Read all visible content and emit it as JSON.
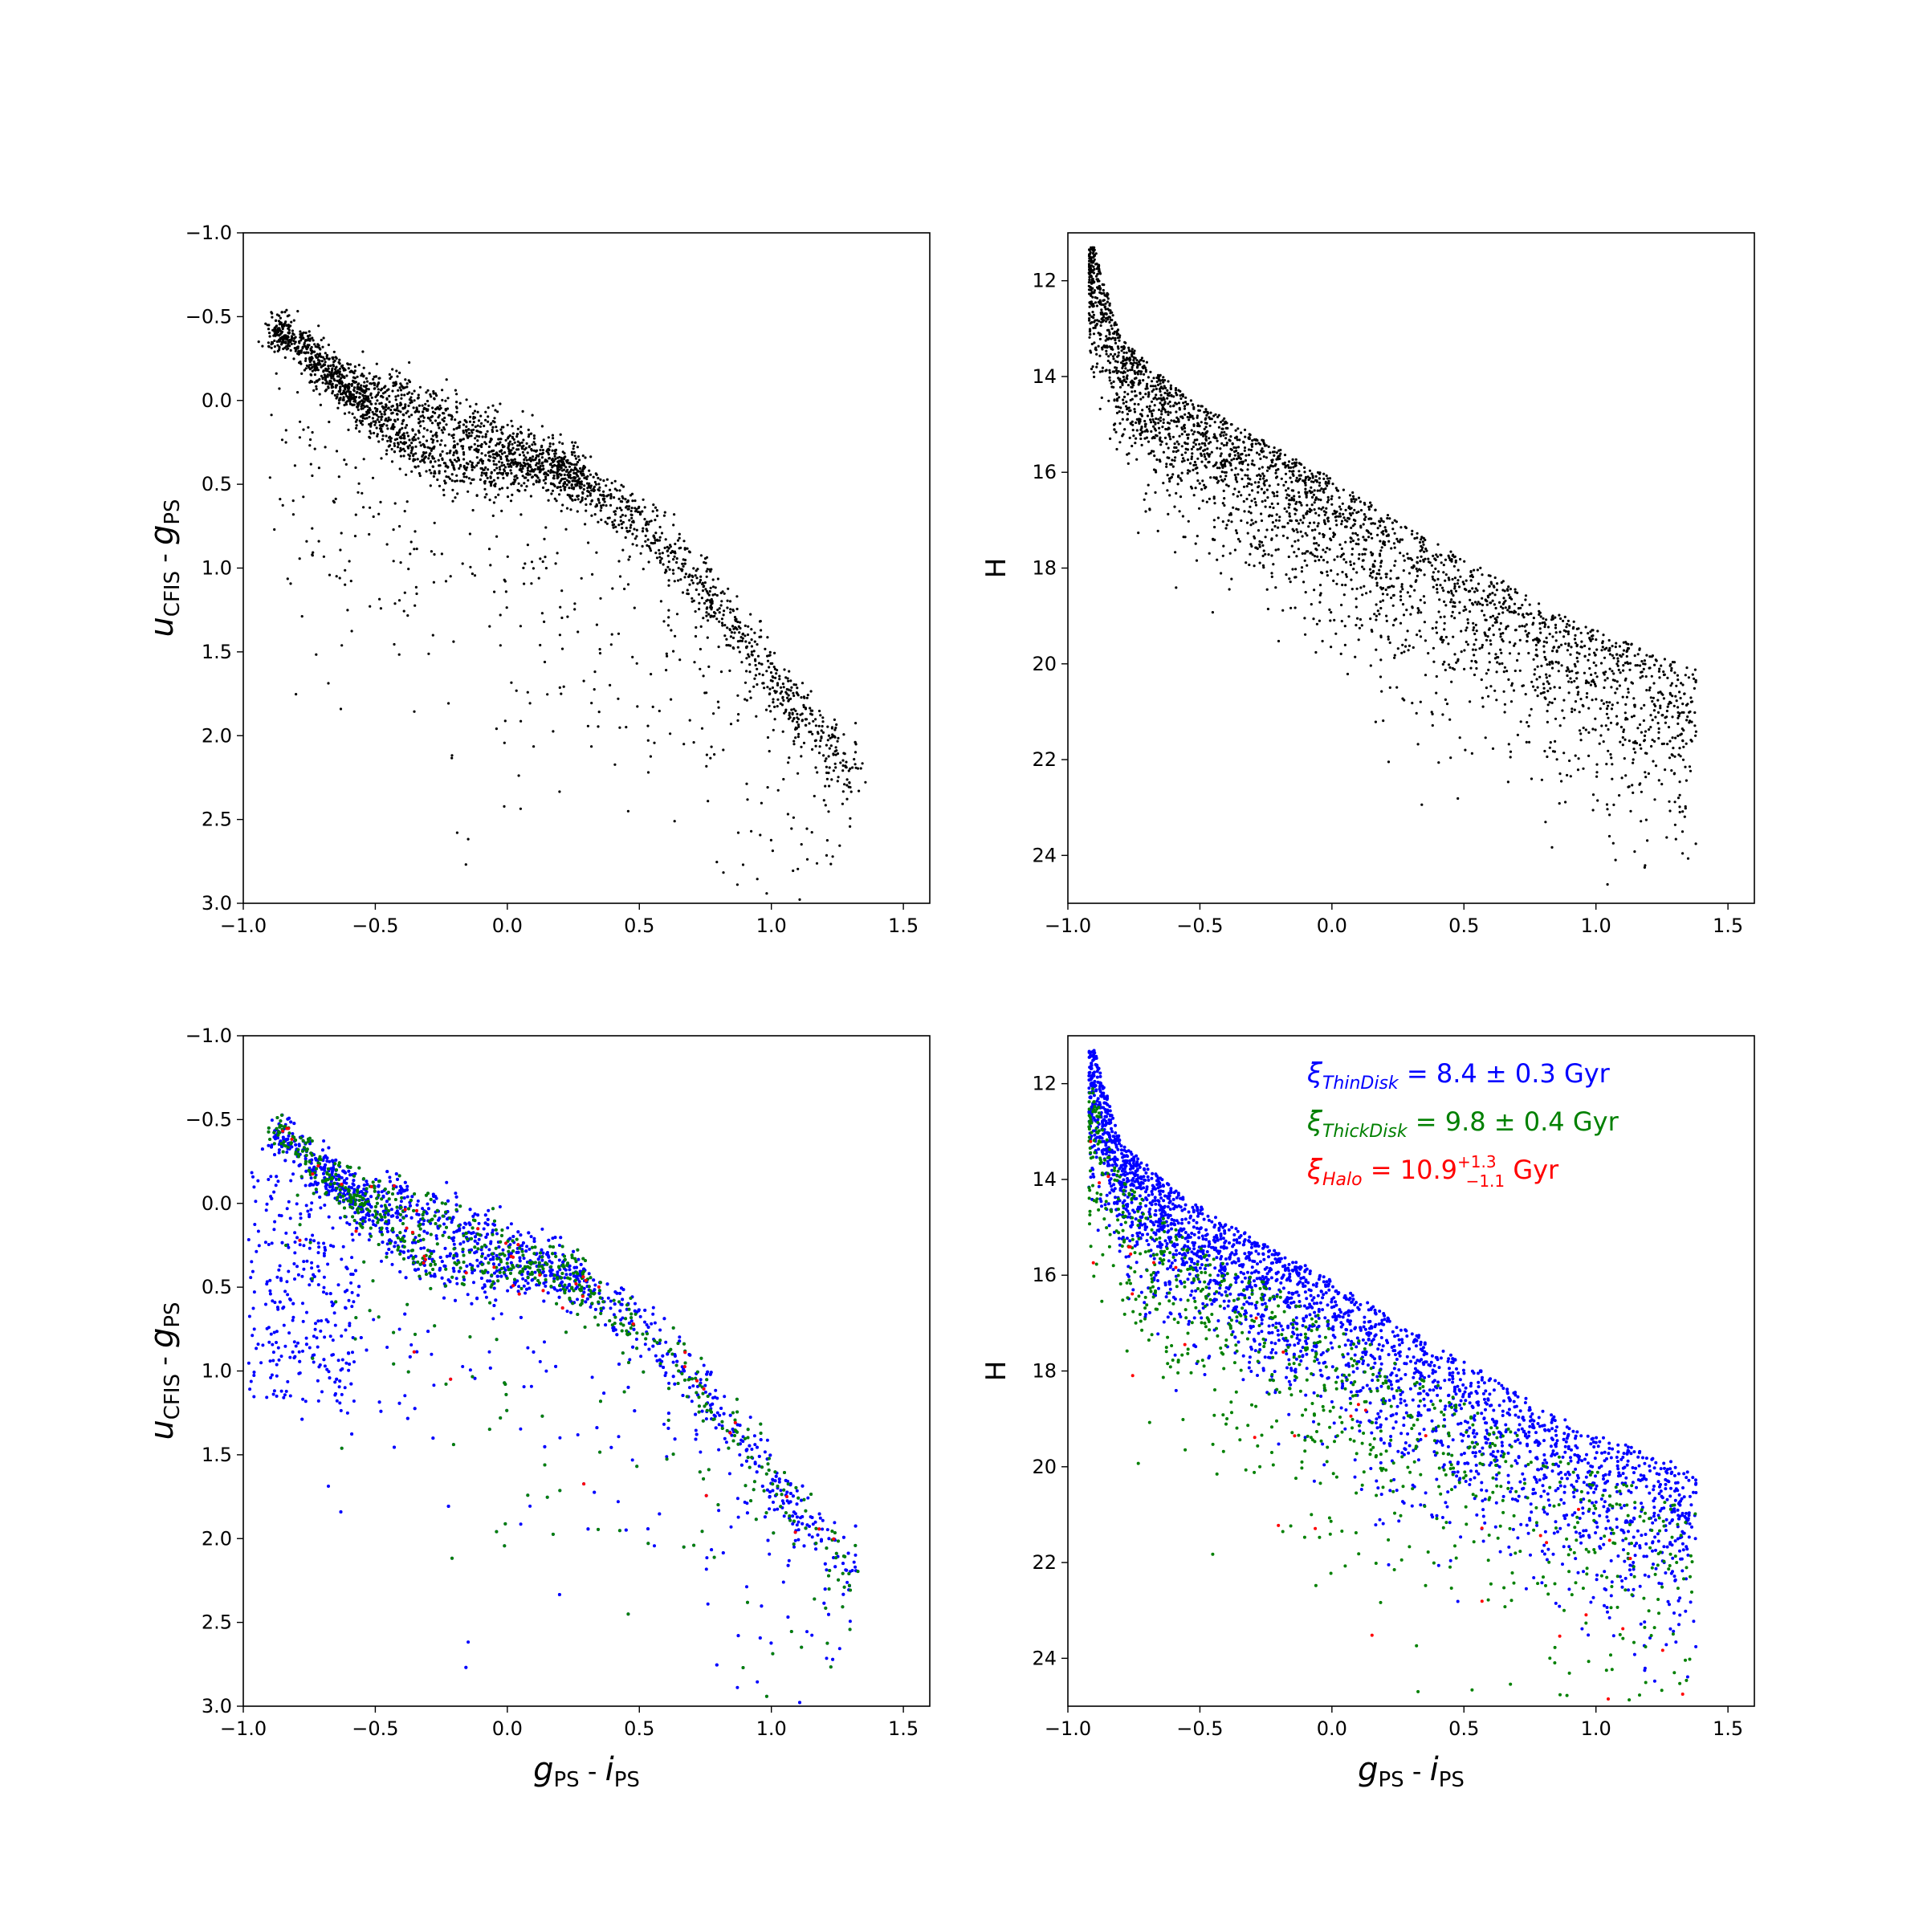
{
  "chart_data": [
    {
      "type": "scatter",
      "panel": "top-left",
      "xlim": [
        -1.0,
        1.6
      ],
      "ylim": [
        3.0,
        -1.0
      ],
      "y_inverted": true,
      "xticks": [
        "−1.0",
        "−0.5",
        "0.0",
        "0.5",
        "1.0",
        "1.5"
      ],
      "yticks": [
        "−1.0",
        "−0.5",
        "0.0",
        "0.5",
        "1.0",
        "1.5",
        "2.0",
        "2.5",
        "3.0"
      ],
      "xlabel": "",
      "ylabel": {
        "main": "u",
        "sub1": "CFIS",
        "sep": " - ",
        "main2": "g",
        "sub2": "PS"
      },
      "series": [
        {
          "color": "#000000",
          "approx_points": 3000
        }
      ],
      "density_ridge": [
        [
          -0.85,
          -0.4
        ],
        [
          -0.7,
          -0.2
        ],
        [
          -0.5,
          0.1
        ],
        [
          -0.3,
          0.35
        ],
        [
          -0.1,
          0.4
        ],
        [
          0.1,
          0.4
        ],
        [
          0.3,
          0.55
        ],
        [
          0.5,
          0.75
        ],
        [
          0.7,
          1.1
        ],
        [
          0.9,
          1.55
        ],
        [
          1.1,
          1.95
        ],
        [
          1.3,
          2.3
        ]
      ]
    },
    {
      "type": "scatter",
      "panel": "top-right",
      "xlim": [
        -1.0,
        1.6
      ],
      "ylim": [
        25,
        11
      ],
      "y_inverted": true,
      "xticks": [
        "−1.0",
        "−0.5",
        "0.0",
        "0.5",
        "1.0",
        "1.5"
      ],
      "yticks": [
        "12",
        "14",
        "16",
        "18",
        "20",
        "22",
        "24"
      ],
      "xlabel": "",
      "ylabel": "H",
      "series": [
        {
          "color": "#000000",
          "approx_points": 3000
        }
      ],
      "bright_envelope": [
        [
          -0.9,
          11.3
        ],
        [
          -0.8,
          13.2
        ],
        [
          -0.6,
          14.2
        ],
        [
          -0.4,
          14.9
        ],
        [
          -0.2,
          15.5
        ],
        [
          0.0,
          16.1
        ],
        [
          0.2,
          16.8
        ],
        [
          0.4,
          17.5
        ],
        [
          0.6,
          18.1
        ],
        [
          0.8,
          18.8
        ],
        [
          1.0,
          19.3
        ],
        [
          1.2,
          19.7
        ],
        [
          1.35,
          20.0
        ]
      ]
    },
    {
      "type": "scatter",
      "panel": "bottom-left",
      "xlim": [
        -1.0,
        1.6
      ],
      "ylim": [
        3.0,
        -1.0
      ],
      "y_inverted": true,
      "xticks": [
        "−1.0",
        "−0.5",
        "0.0",
        "0.5",
        "1.0",
        "1.5"
      ],
      "yticks": [
        "−1.0",
        "−0.5",
        "0.0",
        "0.5",
        "1.0",
        "1.5",
        "2.0",
        "2.5",
        "3.0"
      ],
      "xlabel": {
        "main": "g",
        "sub1": "PS",
        "sep": " - ",
        "main2": "i",
        "sub2": "PS"
      },
      "ylabel": {
        "main": "u",
        "sub1": "CFIS",
        "sep": " - ",
        "main2": "g",
        "sub2": "PS"
      },
      "series": [
        {
          "color": "#0000ff",
          "approx_points": 2600
        },
        {
          "color": "#008000",
          "approx_points": 700
        },
        {
          "color": "#ff0000",
          "approx_points": 50
        }
      ]
    },
    {
      "type": "scatter",
      "panel": "bottom-right",
      "xlim": [
        -1.0,
        1.6
      ],
      "ylim": [
        25,
        11
      ],
      "y_inverted": true,
      "xticks": [
        "−1.0",
        "−0.5",
        "0.0",
        "0.5",
        "1.0",
        "1.5"
      ],
      "yticks": [
        "12",
        "14",
        "16",
        "18",
        "20",
        "22",
        "24"
      ],
      "xlabel": {
        "main": "g",
        "sub1": "PS",
        "sep": " - ",
        "main2": "i",
        "sub2": "PS"
      },
      "ylabel": "H",
      "series": [
        {
          "color": "#0000ff",
          "approx_points": 2800
        },
        {
          "color": "#008000",
          "approx_points": 900
        },
        {
          "color": "#ff0000",
          "approx_points": 40
        }
      ],
      "annotations": [
        {
          "xi": "ξ",
          "sub": "ThinDisk",
          "text": " = 8.4 ± 0.3 Gyr",
          "color": "#0000ff"
        },
        {
          "xi": "ξ",
          "sub": "ThickDisk",
          "text": " = 9.8 ± 0.4 Gyr",
          "color": "#008000"
        },
        {
          "xi": "ξ",
          "sub": "Halo",
          "text": " = 10.9",
          "sup": "+1.3",
          "subscr": "−1.1",
          "unit": " Gyr",
          "color": "#ff0000"
        }
      ]
    }
  ]
}
